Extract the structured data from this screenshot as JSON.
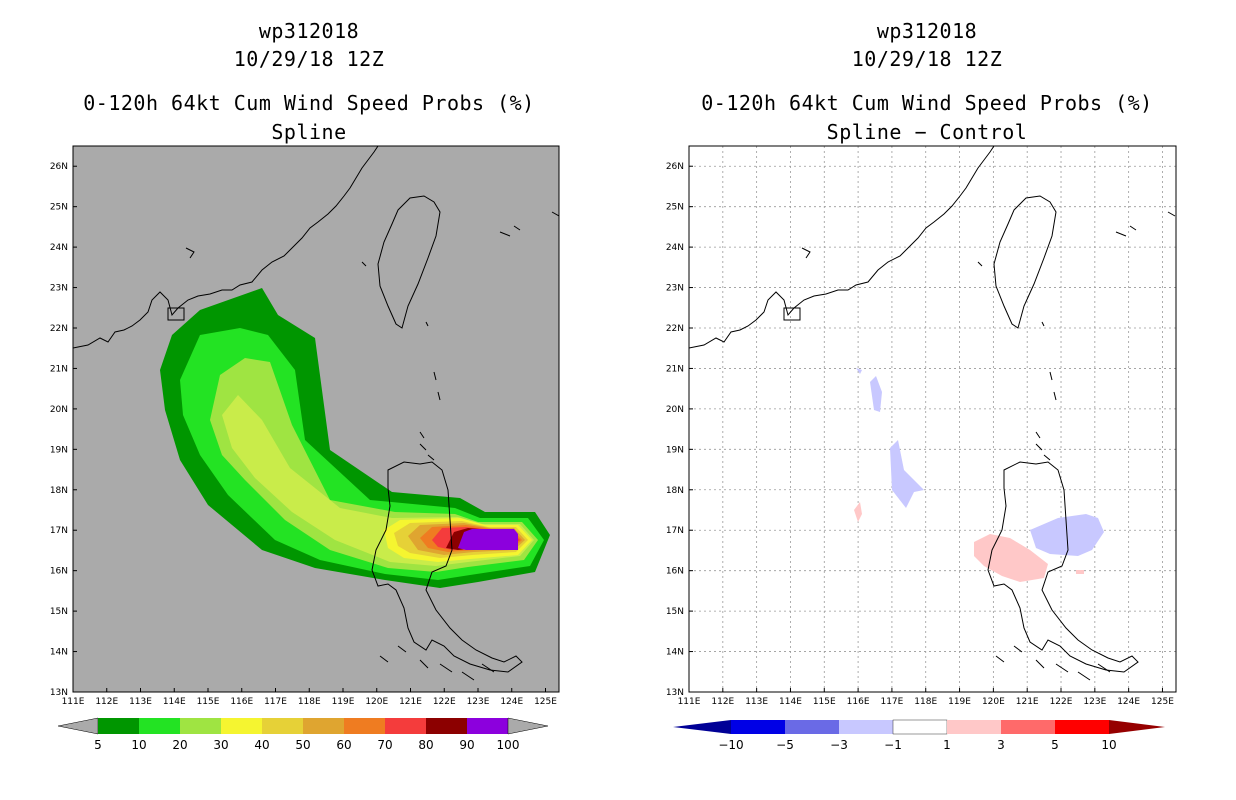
{
  "panels": [
    {
      "storm_id": "wp312018",
      "datetime": "10/29/18 12Z",
      "product": "0-120h 64kt Cum Wind Speed Probs (%)",
      "method": "Spline",
      "colors": {
        "background": "#aaaaaa"
      },
      "colorbar": {
        "labels": [
          "5",
          "10",
          "20",
          "30",
          "40",
          "50",
          "60",
          "70",
          "80",
          "90",
          "100"
        ],
        "colors": [
          "#009600",
          "#23e323",
          "#9fe442",
          "#f5f530",
          "#e6d137",
          "#dfa530",
          "#ef7c21",
          "#f43c3c",
          "#8c0000",
          "#8c00dd"
        ],
        "end_color": "#aaaaaa"
      }
    },
    {
      "storm_id": "wp312018",
      "datetime": "10/29/18 12Z",
      "product": "0-120h 64kt Cum Wind Speed Probs (%)",
      "method": "Spline − Control",
      "colors": {
        "background": "#ffffff"
      },
      "colorbar": {
        "labels": [
          "−10",
          "−5",
          "−3",
          "−1",
          "1",
          "3",
          "5",
          "10"
        ],
        "colors": [
          "#0000e6",
          "#6a6ae6",
          "#c8c8ff",
          "#ffffff",
          "#ffc8c8",
          "#ff6a6a",
          "#ff0000"
        ],
        "low_color": "#000096",
        "high_color": "#960000"
      }
    }
  ],
  "chart_data": [
    {
      "type": "heatmap",
      "title": "wp312018 10/29/18 12Z 0-120h 64kt Cum Wind Speed Probs (%) Spline",
      "x_ticks": [
        "111E",
        "112E",
        "113E",
        "114E",
        "115E",
        "116E",
        "117E",
        "118E",
        "119E",
        "120E",
        "121E",
        "122E",
        "123E",
        "124E",
        "125E"
      ],
      "y_ticks": [
        "13N",
        "14N",
        "15N",
        "16N",
        "17N",
        "18N",
        "19N",
        "20N",
        "21N",
        "22N",
        "23N",
        "24N",
        "25N",
        "26N"
      ],
      "xlim": [
        111,
        125.4
      ],
      "ylim": [
        13,
        26.5
      ],
      "units": "%",
      "contour_levels": [
        5,
        10,
        20,
        30,
        40,
        50,
        60,
        70,
        80,
        90,
        100
      ],
      "peak_region": {
        "lon_range": [
          122.3,
          124.4
        ],
        "lat_range": [
          16.4,
          17.1
        ],
        "value_range": [
          90,
          100
        ]
      },
      "track_extent": {
        "lon_range": [
          113.2,
          124.7
        ],
        "lat_range": [
          15.6,
          22.9
        ]
      }
    },
    {
      "type": "heatmap",
      "title": "wp312018 10/29/18 12Z 0-120h 64kt Cum Wind Speed Probs (%) Spline − Control",
      "x_ticks": [
        "111E",
        "112E",
        "113E",
        "114E",
        "115E",
        "116E",
        "117E",
        "118E",
        "119E",
        "120E",
        "121E",
        "122E",
        "123E",
        "124E",
        "125E"
      ],
      "y_ticks": [
        "13N",
        "14N",
        "15N",
        "16N",
        "17N",
        "18N",
        "19N",
        "20N",
        "21N",
        "22N",
        "23N",
        "24N",
        "25N",
        "26N"
      ],
      "xlim": [
        111,
        125.4
      ],
      "ylim": [
        13,
        26.5
      ],
      "units": "%",
      "contour_levels": [
        -10,
        -5,
        -3,
        -1,
        1,
        3,
        5,
        10
      ],
      "grid": true,
      "features": [
        {
          "sign": "negative",
          "range": [
            -3,
            -1
          ],
          "center": [
            122.9,
            16.8
          ]
        },
        {
          "sign": "negative",
          "range": [
            -3,
            -1
          ],
          "center": [
            117.2,
            18.3
          ]
        },
        {
          "sign": "negative",
          "range": [
            -3,
            -1
          ],
          "center": [
            116.4,
            20.4
          ]
        },
        {
          "sign": "positive",
          "range": [
            1,
            3
          ],
          "center": [
            120.9,
            16.3
          ]
        },
        {
          "sign": "positive",
          "range": [
            1,
            3
          ],
          "center": [
            116.0,
            17.4
          ]
        }
      ]
    }
  ]
}
